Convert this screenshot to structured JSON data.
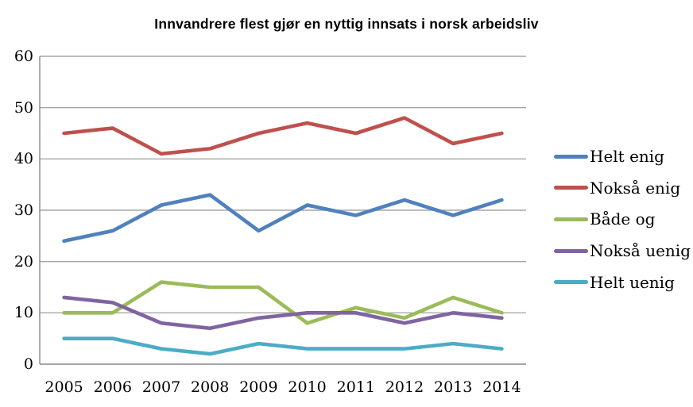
{
  "chart_data": {
    "type": "line",
    "title": "Innvandrere flest gjør en nyttig innsats i norsk arbeidsliv",
    "categories": [
      "2005",
      "2006",
      "2007",
      "2008",
      "2009",
      "2010",
      "2011",
      "2012",
      "2013",
      "2014"
    ],
    "series": [
      {
        "name": "Helt enig",
        "color": "#4F81BD",
        "values": [
          24,
          26,
          31,
          33,
          26,
          31,
          29,
          32,
          29,
          32
        ]
      },
      {
        "name": "Nokså enig",
        "color": "#C0504D",
        "values": [
          45,
          46,
          41,
          42,
          45,
          47,
          45,
          48,
          43,
          45
        ]
      },
      {
        "name": "Både og",
        "color": "#9BBB59",
        "values": [
          10,
          10,
          16,
          15,
          15,
          8,
          11,
          9,
          13,
          10
        ]
      },
      {
        "name": "Nokså uenig",
        "color": "#8064A2",
        "values": [
          13,
          12,
          8,
          7,
          9,
          10,
          10,
          8,
          10,
          9
        ]
      },
      {
        "name": "Helt uenig",
        "color": "#4BACC6",
        "values": [
          5,
          5,
          3,
          2,
          4,
          3,
          3,
          3,
          4,
          3
        ]
      }
    ],
    "y_ticks": [
      0,
      10,
      20,
      30,
      40,
      50,
      60
    ],
    "ylim": [
      0,
      60
    ],
    "grid": true,
    "legend_position": "right",
    "gridline_color": "#A6A6A6",
    "axis_color": "#898989",
    "text_color": "#000000"
  }
}
